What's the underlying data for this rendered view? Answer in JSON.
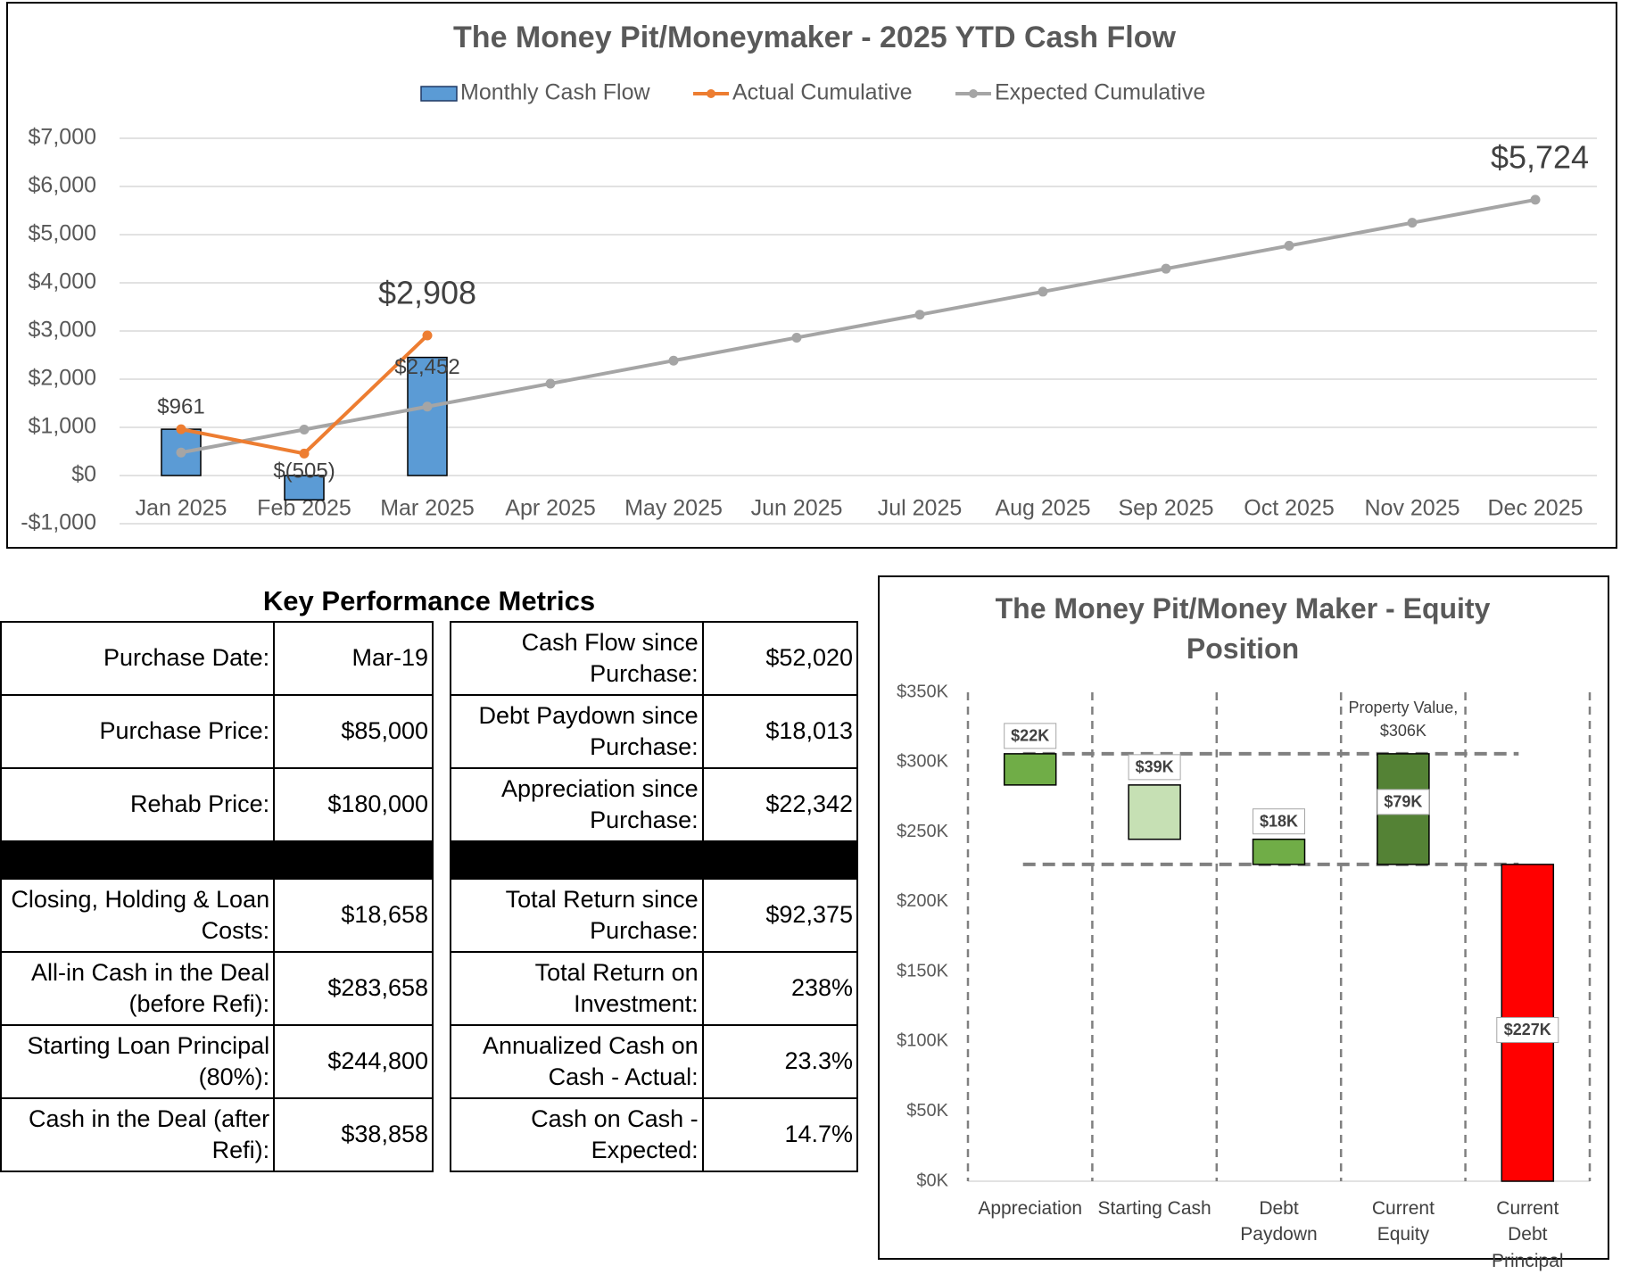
{
  "chart_data": [
    {
      "type": "combo",
      "title": "The Money Pit/Moneymaker - 2025 YTD Cash Flow",
      "categories": [
        "Jan 2025",
        "Feb 2025",
        "Mar 2025",
        "Apr 2025",
        "May 2025",
        "Jun 2025",
        "Jul 2025",
        "Aug 2025",
        "Sep 2025",
        "Oct 2025",
        "Nov 2025",
        "Dec 2025"
      ],
      "series": [
        {
          "name": "Monthly Cash Flow",
          "type": "bar",
          "color": "#5b9bd5",
          "values": [
            961,
            -505,
            2452,
            null,
            null,
            null,
            null,
            null,
            null,
            null,
            null,
            null
          ],
          "value_labels": [
            "$961",
            "$(505)",
            "$2,452",
            null,
            null,
            null,
            null,
            null,
            null,
            null,
            null,
            null
          ]
        },
        {
          "name": "Actual Cumulative",
          "type": "line",
          "color": "#ed7d31",
          "values": [
            961,
            456,
            2908,
            null,
            null,
            null,
            null,
            null,
            null,
            null,
            null,
            null
          ],
          "value_labels": [
            null,
            null,
            "$2,908",
            null,
            null,
            null,
            null,
            null,
            null,
            null,
            null,
            null
          ]
        },
        {
          "name": "Expected Cumulative",
          "type": "line",
          "color": "#a5a5a5",
          "values": [
            477,
            954,
            1431,
            1908,
            2385,
            2862,
            3339,
            3816,
            4293,
            4770,
            5247,
            5724
          ],
          "value_labels": [
            null,
            null,
            null,
            null,
            null,
            null,
            null,
            null,
            null,
            null,
            null,
            "$5,724"
          ]
        }
      ],
      "ylim": [
        -1000,
        7000
      ],
      "yticks": [
        {
          "value": -1000,
          "label": "-$1,000"
        },
        {
          "value": 0,
          "label": "$0"
        },
        {
          "value": 1000,
          "label": "$1,000"
        },
        {
          "value": 2000,
          "label": "$2,000"
        },
        {
          "value": 3000,
          "label": "$3,000"
        },
        {
          "value": 4000,
          "label": "$4,000"
        },
        {
          "value": 5000,
          "label": "$5,000"
        },
        {
          "value": 6000,
          "label": "$6,000"
        },
        {
          "value": 7000,
          "label": "$7,000"
        }
      ],
      "grid": true,
      "legend": "top"
    },
    {
      "type": "waterfall",
      "title": "The Money Pit/Money Maker - Equity Position",
      "categories": [
        "Appreciation",
        "Starting Cash",
        "Debt Paydown",
        "Current Equity",
        "Current Debt Principal"
      ],
      "values": [
        22342,
        38858,
        18013,
        79213,
        226787
      ],
      "value_labels": [
        "$22K",
        "$39K",
        "$18K",
        "$79K",
        "$227K"
      ],
      "colors": [
        "#70ad47",
        "#c6e0b4",
        "#70ad47",
        "#548235",
        "#ff0000"
      ],
      "annotation_lines": [
        "Property Value,",
        "$306K"
      ],
      "ylim": [
        0,
        350000
      ],
      "yticks": [
        {
          "value": 0,
          "label": "$0K"
        },
        {
          "value": 50000,
          "label": "$50K"
        },
        {
          "value": 100000,
          "label": "$100K"
        },
        {
          "value": 150000,
          "label": "$150K"
        },
        {
          "value": 200000,
          "label": "$200K"
        },
        {
          "value": 250000,
          "label": "$250K"
        },
        {
          "value": 300000,
          "label": "$300K"
        },
        {
          "value": 350000,
          "label": "$350K"
        }
      ],
      "grid": false
    }
  ],
  "kpi": {
    "title": "Key Performance Metrics",
    "left": {
      "upper": [
        [
          "Purchase Date:",
          "Mar-19"
        ],
        [
          "Purchase Price:",
          "$85,000"
        ],
        [
          "Rehab Price:",
          "$180,000"
        ]
      ],
      "lower": [
        [
          "Closing, Holding & Loan Costs:",
          "$18,658"
        ],
        [
          "All-in Cash in the Deal (before Refi):",
          "$283,658"
        ],
        [
          "Starting Loan Principal (80%):",
          "$244,800"
        ],
        [
          "Cash in the Deal (after Refi):",
          "$38,858"
        ]
      ]
    },
    "right": {
      "upper": [
        [
          "Cash Flow since Purchase:",
          "$52,020"
        ],
        [
          "Debt Paydown since Purchase:",
          "$18,013"
        ],
        [
          "Appreciation since Purchase:",
          "$22,342"
        ]
      ],
      "lower": [
        [
          "Total Return since Purchase:",
          "$92,375"
        ],
        [
          "Total Return on Investment:",
          "238%"
        ],
        [
          "Annualized Cash on Cash - Actual:",
          "23.3%"
        ],
        [
          "Cash on Cash - Expected:",
          "14.7%"
        ]
      ]
    }
  }
}
